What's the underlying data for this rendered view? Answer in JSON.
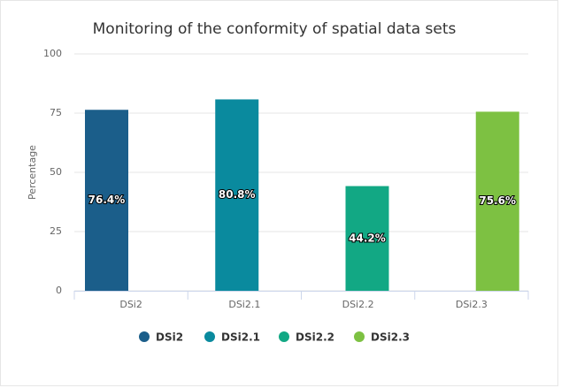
{
  "chart_data": {
    "type": "bar",
    "title": "Monitoring of the conformity of spatial data sets",
    "y_axis_label": "Percentage",
    "categories": [
      "DSi2",
      "DSi2.1",
      "DSi2.2",
      "DSi2.3"
    ],
    "series": [
      {
        "name": "DSi2",
        "color": "#1b5e8a",
        "values": [
          76.4,
          null,
          null,
          null
        ],
        "value_labels": [
          "76.4%",
          null,
          null,
          null
        ]
      },
      {
        "name": "DSi2.1",
        "color": "#0a8a9e",
        "values": [
          null,
          80.8,
          null,
          null
        ],
        "value_labels": [
          null,
          "80.8%",
          null,
          null
        ]
      },
      {
        "name": "DSi2.2",
        "color": "#12a884",
        "values": [
          null,
          null,
          44.2,
          null
        ],
        "value_labels": [
          null,
          null,
          "44.2%",
          null
        ]
      },
      {
        "name": "DSi2.3",
        "color": "#7dc142",
        "values": [
          null,
          null,
          null,
          75.6
        ],
        "value_labels": [
          null,
          null,
          null,
          "75.6%"
        ]
      }
    ],
    "ylim": [
      0,
      100
    ],
    "yticks": [
      0,
      25,
      50,
      75,
      100
    ],
    "grid": true,
    "legend": "bottom"
  }
}
